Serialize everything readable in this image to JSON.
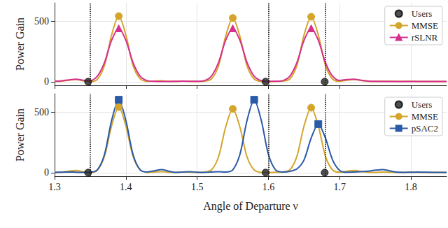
{
  "chart_data": [
    {
      "type": "line",
      "y_label": "Power Gain",
      "xlim": [
        1.3,
        1.85
      ],
      "xticks": [
        1.3,
        1.4,
        1.5,
        1.6,
        1.7,
        1.8
      ],
      "ylim": [
        -30,
        650
      ],
      "yticks": [
        0,
        500
      ],
      "grid": true,
      "legend": "upper right",
      "tick_labels": "y",
      "x": [
        1.3,
        1.31,
        1.32,
        1.33,
        1.34,
        1.35,
        1.36,
        1.37,
        1.38,
        1.39,
        1.4,
        1.41,
        1.42,
        1.43,
        1.44,
        1.45,
        1.46,
        1.47,
        1.48,
        1.49,
        1.5,
        1.51,
        1.52,
        1.53,
        1.54,
        1.55,
        1.56,
        1.57,
        1.58,
        1.59,
        1.6,
        1.61,
        1.62,
        1.63,
        1.64,
        1.65,
        1.66,
        1.67,
        1.68,
        1.69,
        1.7,
        1.71,
        1.72,
        1.73,
        1.74,
        1.75,
        1.76,
        1.77,
        1.78,
        1.79,
        1.8,
        1.81,
        1.82,
        1.83,
        1.84,
        1.85
      ],
      "series": [
        {
          "name": "Users",
          "type": "scatter",
          "color": "#222222",
          "marker": "circle",
          "line_style": "dotted",
          "x": [
            1.347,
            1.596,
            1.679
          ],
          "values": [
            0,
            0,
            0
          ]
        },
        {
          "name": "MMSE",
          "color": "#d4a52a",
          "marker": "circle",
          "values": [
            2,
            5,
            12,
            18,
            8,
            0,
            20,
            135,
            385,
            540,
            385,
            135,
            24,
            2,
            5,
            8,
            3,
            2,
            5,
            3,
            2,
            5,
            22,
            130,
            375,
            525,
            375,
            130,
            22,
            2,
            0,
            3,
            5,
            22,
            135,
            385,
            535,
            385,
            135,
            22,
            3,
            12,
            18,
            10,
            3,
            2,
            4,
            3,
            2,
            2,
            3,
            2,
            2,
            1,
            1,
            1
          ]
        },
        {
          "name": "rSLNR",
          "color": "#d62f8c",
          "marker": "triangle",
          "values": [
            3,
            8,
            15,
            20,
            12,
            8,
            45,
            158,
            341,
            440,
            341,
            158,
            45,
            8,
            3,
            2,
            2,
            3,
            4,
            3,
            3,
            8,
            45,
            158,
            341,
            440,
            341,
            158,
            45,
            8,
            3,
            3,
            8,
            45,
            158,
            341,
            440,
            341,
            158,
            45,
            10,
            18,
            20,
            12,
            5,
            3,
            2,
            2,
            2,
            2,
            2,
            2,
            2,
            2,
            2,
            2
          ]
        }
      ]
    },
    {
      "type": "line",
      "x_label": "Angle of Departure ν",
      "y_label": "Power Gain",
      "xlim": [
        1.3,
        1.85
      ],
      "xticks": [
        1.3,
        1.4,
        1.5,
        1.6,
        1.7,
        1.8
      ],
      "ylim": [
        -30,
        650
      ],
      "yticks": [
        0,
        500
      ],
      "grid": true,
      "legend": "upper right",
      "x": [
        1.3,
        1.31,
        1.32,
        1.33,
        1.34,
        1.35,
        1.36,
        1.37,
        1.38,
        1.39,
        1.4,
        1.41,
        1.42,
        1.43,
        1.44,
        1.45,
        1.46,
        1.47,
        1.48,
        1.49,
        1.5,
        1.51,
        1.52,
        1.53,
        1.54,
        1.55,
        1.56,
        1.57,
        1.58,
        1.59,
        1.6,
        1.61,
        1.62,
        1.63,
        1.64,
        1.65,
        1.66,
        1.67,
        1.68,
        1.69,
        1.7,
        1.71,
        1.72,
        1.73,
        1.74,
        1.75,
        1.76,
        1.77,
        1.78,
        1.79,
        1.8,
        1.81,
        1.82,
        1.83,
        1.84,
        1.85
      ],
      "series": [
        {
          "name": "Users",
          "type": "scatter",
          "color": "#222222",
          "marker": "circle",
          "line_style": "dotted",
          "x": [
            1.347,
            1.596,
            1.679
          ],
          "values": [
            0,
            0,
            0
          ]
        },
        {
          "name": "MMSE",
          "color": "#d4a52a",
          "marker": "circle",
          "values": [
            2,
            5,
            12,
            18,
            8,
            0,
            20,
            135,
            385,
            540,
            385,
            135,
            24,
            2,
            5,
            8,
            3,
            2,
            5,
            3,
            2,
            5,
            22,
            130,
            375,
            525,
            375,
            130,
            22,
            2,
            0,
            3,
            5,
            22,
            135,
            385,
            535,
            385,
            135,
            22,
            3,
            12,
            18,
            10,
            3,
            2,
            4,
            3,
            2,
            2,
            3,
            2,
            2,
            1,
            1,
            1
          ]
        },
        {
          "name": "pSAC2",
          "color": "#2a5aa8",
          "marker": "square",
          "values": [
            2,
            3,
            5,
            3,
            2,
            3,
            22,
            150,
            430,
            600,
            430,
            150,
            22,
            5,
            15,
            25,
            12,
            2,
            5,
            8,
            3,
            2,
            5,
            8,
            4,
            22,
            150,
            430,
            600,
            430,
            150,
            22,
            5,
            10,
            30,
            105,
            285,
            400,
            285,
            105,
            18,
            3,
            5,
            8,
            12,
            20,
            25,
            15,
            4,
            2,
            3,
            4,
            3,
            2,
            2,
            2
          ]
        }
      ]
    }
  ]
}
